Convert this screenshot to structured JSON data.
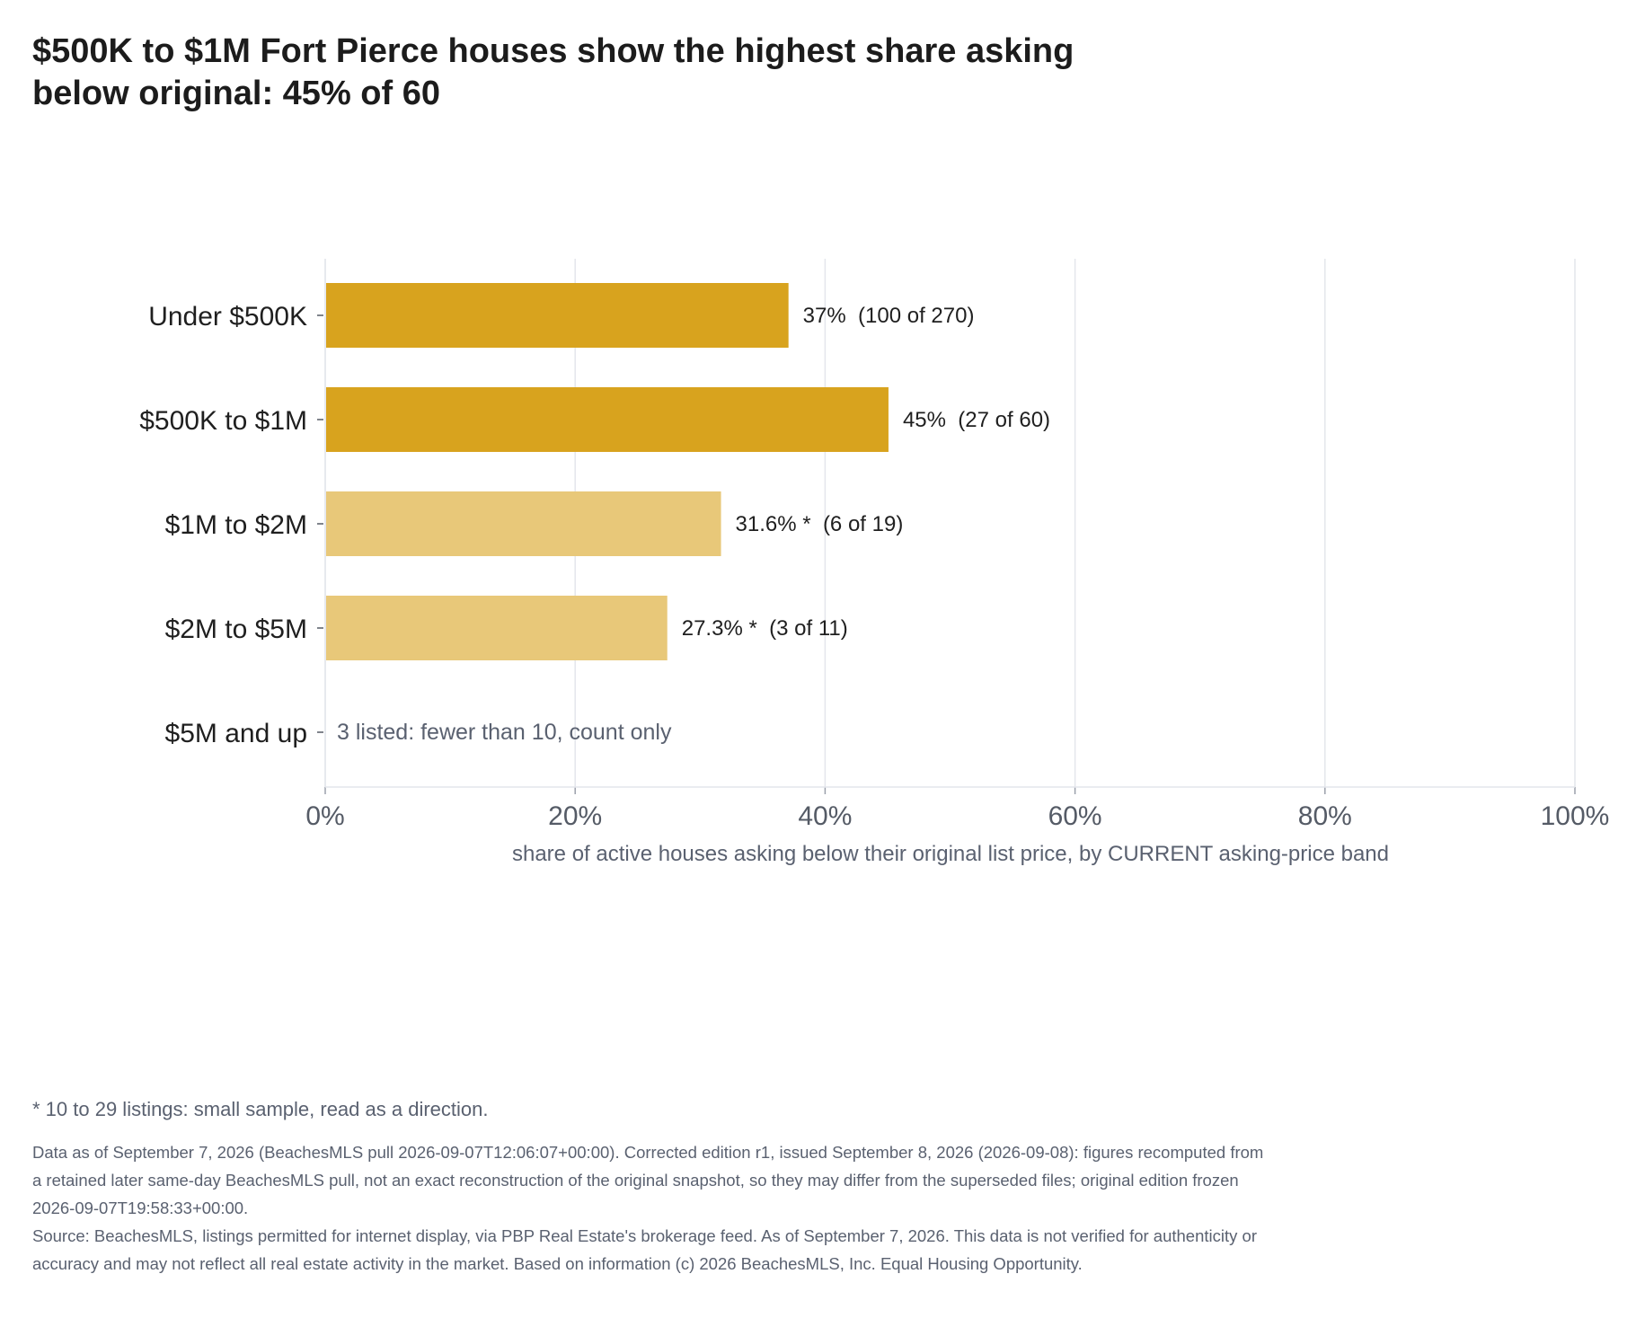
{
  "title_lines": [
    "$500K to $1M Fort Pierce houses show the highest share asking",
    "below original: 45% of 60"
  ],
  "chart_data": {
    "type": "bar",
    "orientation": "horizontal",
    "categories": [
      "Under $500K",
      "$500K to $1M",
      "$1M to $2M",
      "$2M to $5M",
      "$5M and up"
    ],
    "values": [
      37,
      45,
      31.6,
      27.3,
      null
    ],
    "value_labels": [
      "37%  (100 of 270)",
      "45%  (27 of 60)",
      "31.6% *  (6 of 19)",
      "27.3% *  (3 of 11)",
      "3 listed: fewer than 10, count only"
    ],
    "bar_colors": [
      "#d8a31e",
      "#d8a31e",
      "#e8c879",
      "#e8c879",
      null
    ],
    "xlim": [
      0,
      100
    ],
    "x_ticks": [
      "0%",
      "20%",
      "40%",
      "60%",
      "80%",
      "100%"
    ],
    "xlabel": "share of active houses asking below their original list price, by CURRENT asking-price band",
    "grid": true,
    "colors": {
      "full_sample": "#d8a31e",
      "small_sample": "#e8c879",
      "grid": "#e4e6ec",
      "muted_text": "#5a6170"
    }
  },
  "footnote": "* 10 to 29 listings: small sample, read as a direction.",
  "notes": [
    "Data as of September 7, 2026 (BeachesMLS pull 2026-09-07T12:06:07+00:00). Corrected edition r1, issued September 8, 2026 (2026-09-08): figures recomputed from a retained later same-day BeachesMLS pull, not an exact reconstruction of the original snapshot, so they may differ from the superseded files; original edition frozen 2026-09-07T19:58:33+00:00.",
    "Source: BeachesMLS, listings permitted for internet display, via PBP Real Estate's brokerage feed. As of September 7, 2026. This data is not verified for authenticity or accuracy and may not reflect all real estate activity in the market. Based on information (c) 2026 BeachesMLS, Inc. Equal Housing Opportunity."
  ]
}
